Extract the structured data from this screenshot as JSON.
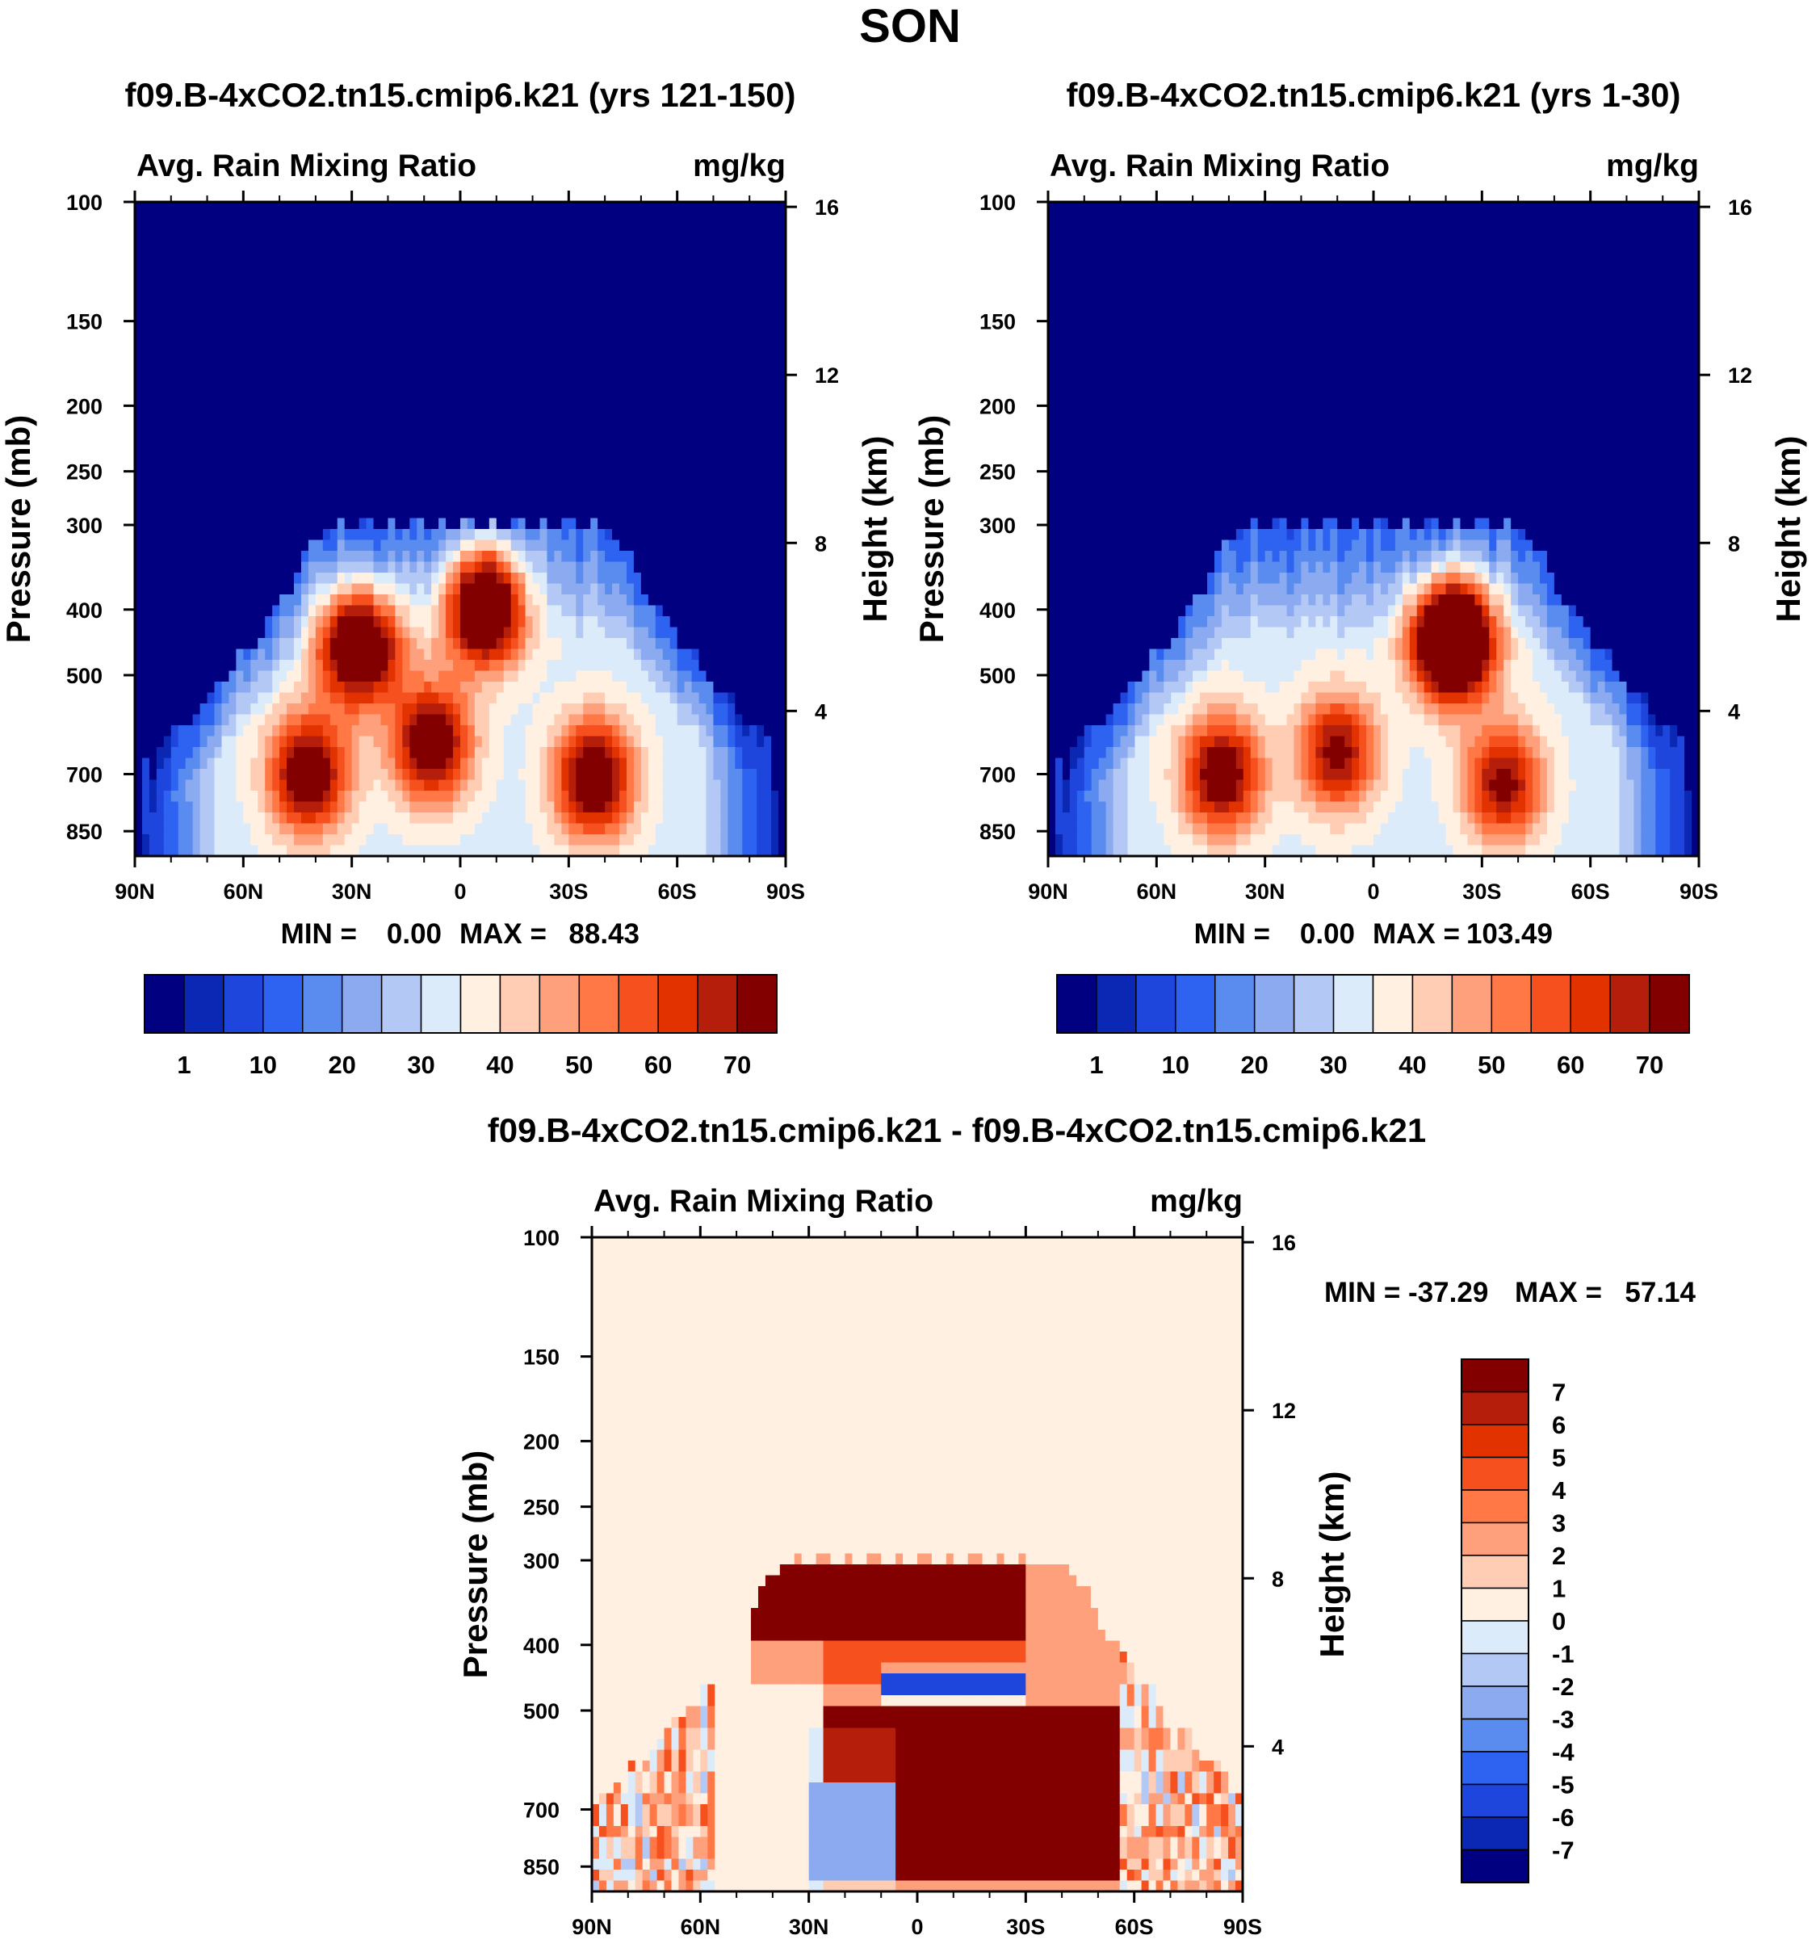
{
  "page_title": "SON",
  "colors": {
    "abs_scale": [
      "#000080",
      "#0a28b4",
      "#1e46dc",
      "#2e62f0",
      "#5a8cf0",
      "#8caaf0",
      "#b4c8f5",
      "#dcebfa",
      "#fff0e1",
      "#ffcdb4",
      "#ffa07d",
      "#ff7846",
      "#f5501e",
      "#e13200",
      "#b41e0a",
      "#820000"
    ],
    "diff_scale": [
      "#000080",
      "#0a28b4",
      "#1e46dc",
      "#2e62f0",
      "#5a8cf0",
      "#8caaf0",
      "#b4c8f5",
      "#dcebfa",
      "#fff0e1",
      "#ffcdb4",
      "#ffa07d",
      "#ff7846",
      "#f5501e",
      "#e13200",
      "#b41e0a",
      "#820000"
    ]
  },
  "chart_data": [
    {
      "id": "case1",
      "type": "heatmap",
      "title": "f09.B-4xCO2.tn15.cmip6.k21 (yrs 121-150)",
      "left_label": "Avg. Rain Mixing Ratio",
      "right_label": "mg/kg",
      "ylabel": "Pressure (mb)",
      "y2label": "Height (km)",
      "x_ticks": [
        "90N",
        "60N",
        "30N",
        "0",
        "30S",
        "60S",
        "90S"
      ],
      "y_ticks": [
        "100",
        "150",
        "200",
        "250",
        "300",
        "400",
        "500",
        "700",
        "850"
      ],
      "y2_ticks": [
        "16",
        "12",
        "8",
        "4"
      ],
      "stats": {
        "min_label": "MIN =",
        "min": "0.00",
        "max_label": "MAX =",
        "max": "88.43"
      },
      "colorbar_labels": [
        "1",
        "10",
        "20",
        "30",
        "40",
        "50",
        "60",
        "70"
      ],
      "plume_ceiling_mb": 300,
      "maxima": [
        {
          "lat": -7,
          "p": 390,
          "v": 88.43
        },
        {
          "lat": 28,
          "p": 450,
          "v": 80
        },
        {
          "lat": 42,
          "p": 700,
          "v": 68
        },
        {
          "lat": 8,
          "p": 630,
          "v": 68
        },
        {
          "lat": -37,
          "p": 710,
          "v": 70
        }
      ]
    },
    {
      "id": "case2",
      "type": "heatmap",
      "title": "f09.B-4xCO2.tn15.cmip6.k21 (yrs 1-30)",
      "left_label": "Avg. Rain Mixing Ratio",
      "right_label": "mg/kg",
      "ylabel": "Pressure (mb)",
      "y2label": "Height (km)",
      "x_ticks": [
        "90N",
        "60N",
        "30N",
        "0",
        "30S",
        "60S",
        "90S"
      ],
      "y_ticks": [
        "100",
        "150",
        "200",
        "250",
        "300",
        "400",
        "500",
        "700",
        "850"
      ],
      "y2_ticks": [
        "16",
        "12",
        "8",
        "4"
      ],
      "stats": {
        "min_label": "MIN =",
        "min": "0.00",
        "max_label": "MAX =",
        "max": "103.49"
      },
      "colorbar_labels": [
        "1",
        "10",
        "20",
        "30",
        "40",
        "50",
        "60",
        "70"
      ],
      "plume_ceiling_mb": 300,
      "maxima": [
        {
          "lat": -22,
          "p": 440,
          "v": 103.49
        },
        {
          "lat": 42,
          "p": 700,
          "v": 66
        },
        {
          "lat": 10,
          "p": 650,
          "v": 60
        },
        {
          "lat": -36,
          "p": 720,
          "v": 60
        }
      ]
    },
    {
      "id": "diff",
      "type": "heatmap",
      "title": "f09.B-4xCO2.tn15.cmip6.k21 - f09.B-4xCO2.tn15.cmip6.k21",
      "left_label": "Avg. Rain Mixing Ratio",
      "right_label": "mg/kg",
      "ylabel": "Pressure (mb)",
      "y2label": "Height (km)",
      "x_ticks": [
        "90N",
        "60N",
        "30N",
        "0",
        "30S",
        "60S",
        "90S"
      ],
      "y_ticks": [
        "100",
        "150",
        "200",
        "250",
        "300",
        "400",
        "500",
        "700",
        "850"
      ],
      "y2_ticks": [
        "16",
        "12",
        "8",
        "4"
      ],
      "stats": {
        "min_label": "MIN = -37.29",
        "max_label": "MAX =",
        "max": "57.14"
      },
      "colorbar_labels": [
        "7",
        "6",
        "5",
        "4",
        "3",
        "2",
        "1",
        "0",
        "-1",
        "-2",
        "-3",
        "-4",
        "-5",
        "-6",
        "-7"
      ],
      "plume_ceiling_mb": 300,
      "features": [
        {
          "kind": "positive",
          "lat_range": [
            -30,
            45
          ],
          "p_range": [
            300,
            400
          ],
          "v": 7
        },
        {
          "kind": "negative",
          "lat_range": [
            -30,
            10
          ],
          "p_range": [
            440,
            470
          ],
          "v": -7
        },
        {
          "kind": "positive",
          "lat_range": [
            -65,
            25
          ],
          "p_range": [
            500,
            900
          ],
          "v": 7
        },
        {
          "kind": "negative",
          "lat_range": [
            7,
            30
          ],
          "p_range": [
            650,
            900
          ],
          "v": -3
        }
      ]
    }
  ]
}
